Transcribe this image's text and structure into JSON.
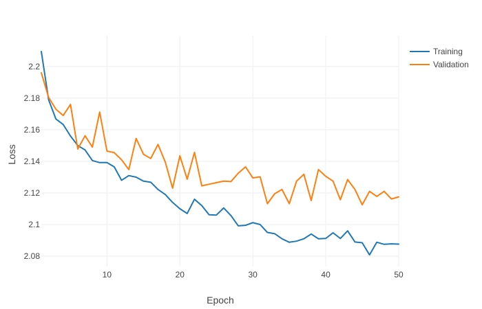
{
  "chart_data": {
    "type": "line",
    "title": "",
    "xlabel": "Epoch",
    "ylabel": "Loss",
    "xlim": [
      1,
      50
    ],
    "ylim": [
      2.0735,
      2.2195
    ],
    "xticks": [
      10,
      20,
      30,
      40,
      50
    ],
    "yticks": [
      2.08,
      2.1,
      2.12,
      2.14,
      2.16,
      2.18,
      2.2
    ],
    "ytick_labels": [
      "2.08",
      "2.1",
      "2.12",
      "2.14",
      "2.16",
      "2.18",
      "2.2"
    ],
    "grid": true,
    "legend_position": "top-right",
    "x": [
      1,
      2,
      3,
      4,
      5,
      6,
      7,
      8,
      9,
      10,
      11,
      12,
      13,
      14,
      15,
      16,
      17,
      18,
      19,
      20,
      21,
      22,
      23,
      24,
      25,
      26,
      27,
      28,
      29,
      30,
      31,
      32,
      33,
      34,
      35,
      36,
      37,
      38,
      39,
      40,
      41,
      42,
      43,
      44,
      45,
      46,
      47,
      48,
      49,
      50
    ],
    "series": [
      {
        "name": "Training",
        "color": "#1f77b4",
        "values": [
          2.2095,
          2.179,
          2.1668,
          2.1633,
          2.156,
          2.15,
          2.1472,
          2.1405,
          2.1392,
          2.1392,
          2.1365,
          2.128,
          2.131,
          2.13,
          2.1275,
          2.1268,
          2.1222,
          2.119,
          2.114,
          2.11,
          2.107,
          2.116,
          2.112,
          2.1062,
          2.106,
          2.1105,
          2.1057,
          2.0992,
          2.0995,
          2.1012,
          2.1,
          2.095,
          2.0942,
          2.091,
          2.0888,
          2.0895,
          2.091,
          2.094,
          2.091,
          2.0912,
          2.0948,
          2.0912,
          2.096,
          2.089,
          2.0885,
          2.0808,
          2.0888,
          2.0875,
          2.0878,
          2.0876
        ]
      },
      {
        "name": "Validation",
        "color": "#ff7f0e",
        "values": [
          2.196,
          2.1805,
          2.173,
          2.169,
          2.176,
          2.1478,
          2.1562,
          2.149,
          2.1712,
          2.1465,
          2.1455,
          2.141,
          2.1348,
          2.1545,
          2.1445,
          2.1418,
          2.1507,
          2.1395,
          2.123,
          2.1435,
          2.1287,
          2.1457,
          2.1245,
          2.1255,
          2.1265,
          2.1275,
          2.1272,
          2.1325,
          2.1365,
          2.1295,
          2.1302,
          2.1132,
          2.1195,
          2.1222,
          2.1132,
          2.1275,
          2.1318,
          2.1152,
          2.1348,
          2.1305,
          2.1275,
          2.1157,
          2.1285,
          2.1222,
          2.1125,
          2.121,
          2.1178,
          2.121,
          2.1162,
          2.1175
        ]
      }
    ]
  }
}
